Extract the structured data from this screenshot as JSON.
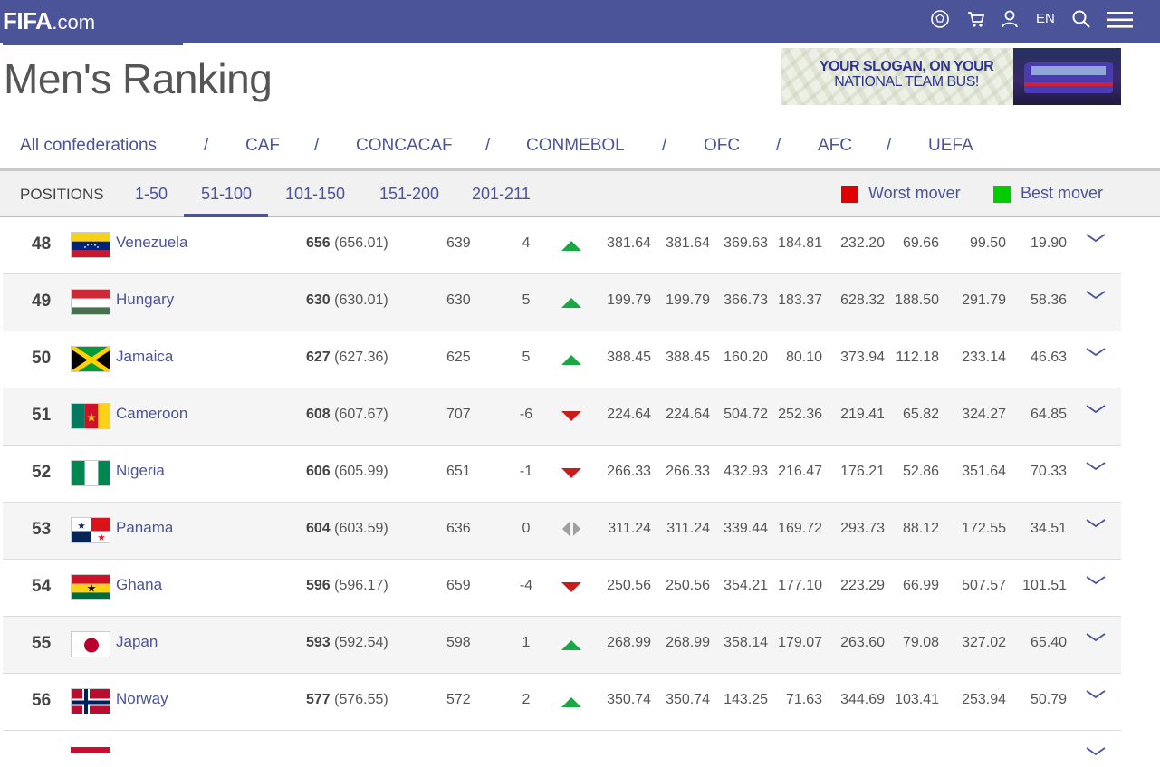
{
  "site": {
    "logo_main": "FIFA",
    "logo_domain": ".com",
    "language": "EN",
    "icons": [
      "ball-icon",
      "cart-icon",
      "user-icon",
      "search-icon",
      "menu-icon"
    ]
  },
  "page_title": "Men's Ranking",
  "ad": {
    "line1": "YOUR SLOGAN, ON YOUR",
    "line2": "NATIONAL TEAM BUS!"
  },
  "confederations": [
    "All confederations",
    "CAF",
    "CONCACAF",
    "CONMEBOL",
    "OFC",
    "AFC",
    "UEFA"
  ],
  "confederation_separator": "/",
  "active_confederation": "All confederations",
  "positions": {
    "label": "POSITIONS",
    "ranges": [
      "1-50",
      "51-100",
      "101-150",
      "151-200",
      "201-211"
    ],
    "active": "51-100"
  },
  "legend": {
    "worst": "Worst mover",
    "best": "Best mover",
    "worst_color": "#e00000",
    "best_color": "#00cc00"
  },
  "colors": {
    "brand": "#4b5399",
    "trend_up": "#1aa845",
    "trend_down": "#c91c1c",
    "trend_same": "#a0a0a0"
  },
  "rows": [
    {
      "rank": "48",
      "flag": "venezuela",
      "country": "Venezuela",
      "points": "656",
      "points_exact": "(656.01)",
      "prev": "639",
      "move": "4",
      "trend": "up",
      "c1": "381.64",
      "c2": "381.64",
      "c3": "369.63",
      "c4": "184.81",
      "c5": "232.20",
      "c6": "69.66",
      "c7": "99.50",
      "c8": "19.90"
    },
    {
      "rank": "49",
      "flag": "hungary",
      "country": "Hungary",
      "points": "630",
      "points_exact": "(630.01)",
      "prev": "630",
      "move": "5",
      "trend": "up",
      "c1": "199.79",
      "c2": "199.79",
      "c3": "366.73",
      "c4": "183.37",
      "c5": "628.32",
      "c6": "188.50",
      "c7": "291.79",
      "c8": "58.36"
    },
    {
      "rank": "50",
      "flag": "jamaica",
      "country": "Jamaica",
      "points": "627",
      "points_exact": "(627.36)",
      "prev": "625",
      "move": "5",
      "trend": "up",
      "c1": "388.45",
      "c2": "388.45",
      "c3": "160.20",
      "c4": "80.10",
      "c5": "373.94",
      "c6": "112.18",
      "c7": "233.14",
      "c8": "46.63"
    },
    {
      "rank": "51",
      "flag": "cameroon",
      "country": "Cameroon",
      "points": "608",
      "points_exact": "(607.67)",
      "prev": "707",
      "move": "-6",
      "trend": "down",
      "c1": "224.64",
      "c2": "224.64",
      "c3": "504.72",
      "c4": "252.36",
      "c5": "219.41",
      "c6": "65.82",
      "c7": "324.27",
      "c8": "64.85"
    },
    {
      "rank": "52",
      "flag": "nigeria",
      "country": "Nigeria",
      "points": "606",
      "points_exact": "(605.99)",
      "prev": "651",
      "move": "-1",
      "trend": "down",
      "c1": "266.33",
      "c2": "266.33",
      "c3": "432.93",
      "c4": "216.47",
      "c5": "176.21",
      "c6": "52.86",
      "c7": "351.64",
      "c8": "70.33"
    },
    {
      "rank": "53",
      "flag": "panama",
      "country": "Panama",
      "points": "604",
      "points_exact": "(603.59)",
      "prev": "636",
      "move": "0",
      "trend": "same",
      "c1": "311.24",
      "c2": "311.24",
      "c3": "339.44",
      "c4": "169.72",
      "c5": "293.73",
      "c6": "88.12",
      "c7": "172.55",
      "c8": "34.51"
    },
    {
      "rank": "54",
      "flag": "ghana",
      "country": "Ghana",
      "points": "596",
      "points_exact": "(596.17)",
      "prev": "659",
      "move": "-4",
      "trend": "down",
      "c1": "250.56",
      "c2": "250.56",
      "c3": "354.21",
      "c4": "177.10",
      "c5": "223.29",
      "c6": "66.99",
      "c7": "507.57",
      "c8": "101.51"
    },
    {
      "rank": "55",
      "flag": "japan",
      "country": "Japan",
      "points": "593",
      "points_exact": "(592.54)",
      "prev": "598",
      "move": "1",
      "trend": "up",
      "c1": "268.99",
      "c2": "268.99",
      "c3": "358.14",
      "c4": "179.07",
      "c5": "263.60",
      "c6": "79.08",
      "c7": "327.02",
      "c8": "65.40"
    },
    {
      "rank": "56",
      "flag": "norway",
      "country": "Norway",
      "points": "577",
      "points_exact": "(576.55)",
      "prev": "572",
      "move": "2",
      "trend": "up",
      "c1": "350.74",
      "c2": "350.74",
      "c3": "143.25",
      "c4": "71.63",
      "c5": "344.69",
      "c6": "103.41",
      "c7": "253.94",
      "c8": "50.79"
    }
  ]
}
